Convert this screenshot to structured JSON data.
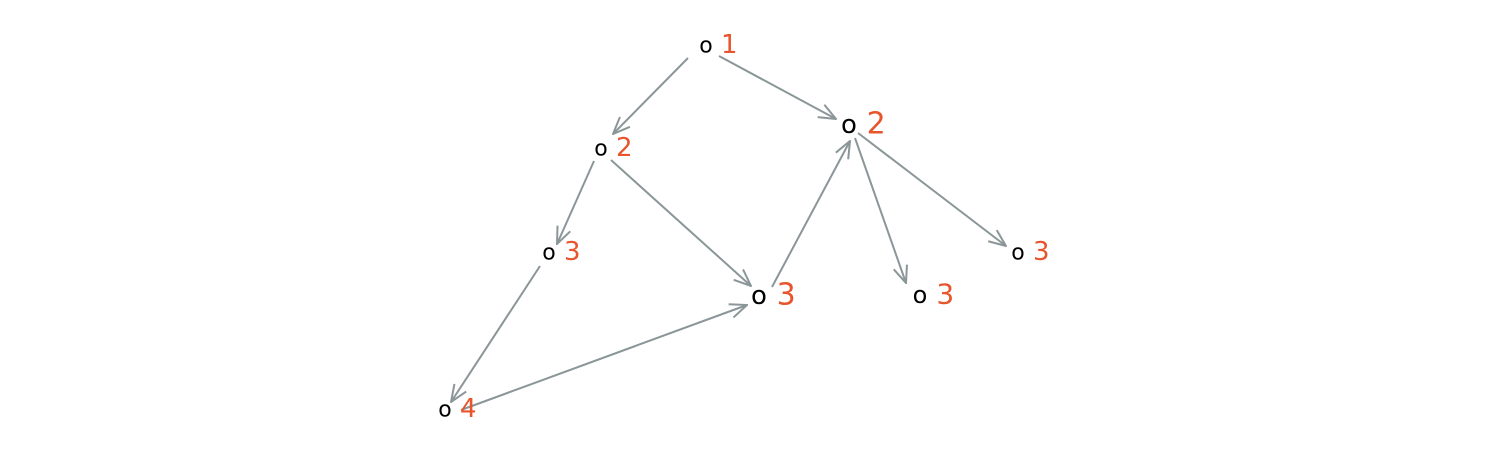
{
  "colors": {
    "edge": "#8b9699",
    "node": "#000000",
    "level": "#e8542b"
  },
  "nodes": [
    {
      "id": "n1",
      "glyph": "o",
      "level": "1"
    },
    {
      "id": "n2",
      "glyph": "o",
      "level": "2"
    },
    {
      "id": "n3",
      "glyph": "o",
      "level": "2"
    },
    {
      "id": "n4",
      "glyph": "o",
      "level": "3"
    },
    {
      "id": "n5",
      "glyph": "o",
      "level": "3"
    },
    {
      "id": "n6",
      "glyph": "o",
      "level": "3"
    },
    {
      "id": "n7",
      "glyph": "o",
      "level": "3"
    },
    {
      "id": "n8",
      "glyph": "o",
      "level": "4"
    }
  ],
  "edges": [
    {
      "from": "n1",
      "to": "n2"
    },
    {
      "from": "n1",
      "to": "n3"
    },
    {
      "from": "n2",
      "to": "n4"
    },
    {
      "from": "n2",
      "to": "n5"
    },
    {
      "from": "n3",
      "to": "n6"
    },
    {
      "from": "n3",
      "to": "n7"
    },
    {
      "from": "n4",
      "to": "n8"
    },
    {
      "from": "n8",
      "to": "n5"
    },
    {
      "from": "n5",
      "to": "n3"
    }
  ]
}
